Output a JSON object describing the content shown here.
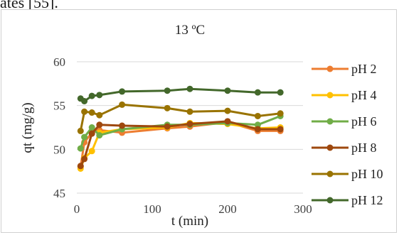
{
  "page": {
    "partial_text": "ates [55]."
  },
  "chart_data": {
    "type": "line",
    "title": "13 ºC",
    "xlabel": "t (min)",
    "ylabel": "qt (mg/g)",
    "xlim": [
      0,
      300
    ],
    "ylim": [
      45,
      60
    ],
    "xticks": [
      0,
      100,
      200,
      300
    ],
    "yticks": [
      45,
      50,
      55,
      60
    ],
    "grid": "horizontal",
    "legend": "right",
    "series": [
      {
        "name": "pH 2",
        "color": "#ED7D31",
        "x": [
          5,
          10,
          20,
          30,
          60,
          120,
          150,
          200,
          240,
          270
        ],
        "y": [
          48.0,
          50.8,
          51.9,
          52.2,
          51.9,
          52.4,
          52.6,
          53.1,
          52.1,
          52.1
        ]
      },
      {
        "name": "pH 4",
        "color": "#FFC000",
        "x": [
          5,
          10,
          20,
          30,
          60,
          120,
          150,
          200,
          240,
          270
        ],
        "y": [
          47.8,
          49.0,
          49.8,
          51.9,
          52.3,
          52.5,
          53.0,
          52.9,
          52.4,
          52.5
        ]
      },
      {
        "name": "pH 6",
        "color": "#70AD47",
        "x": [
          5,
          10,
          20,
          30,
          60,
          120,
          150,
          200,
          240,
          270
        ],
        "y": [
          50.1,
          51.4,
          52.5,
          51.6,
          52.3,
          52.8,
          52.8,
          53.0,
          52.8,
          53.8
        ]
      },
      {
        "name": "pH 8",
        "color": "#9E480E",
        "x": [
          5,
          10,
          20,
          30,
          60,
          120,
          150,
          200,
          240,
          270
        ],
        "y": [
          48.1,
          48.9,
          51.8,
          52.8,
          52.7,
          52.6,
          52.9,
          53.2,
          52.3,
          52.3
        ]
      },
      {
        "name": "pH 10",
        "color": "#997300",
        "x": [
          5,
          10,
          20,
          30,
          60,
          120,
          150,
          200,
          240,
          270
        ],
        "y": [
          52.1,
          54.3,
          54.2,
          53.9,
          55.1,
          54.7,
          54.3,
          54.4,
          53.8,
          54.1
        ]
      },
      {
        "name": "pH 12",
        "color": "#43682B",
        "x": [
          5,
          10,
          20,
          30,
          60,
          120,
          150,
          200,
          240,
          270
        ],
        "y": [
          55.8,
          55.5,
          56.1,
          56.2,
          56.6,
          56.7,
          56.9,
          56.7,
          56.5,
          56.5
        ]
      }
    ]
  }
}
